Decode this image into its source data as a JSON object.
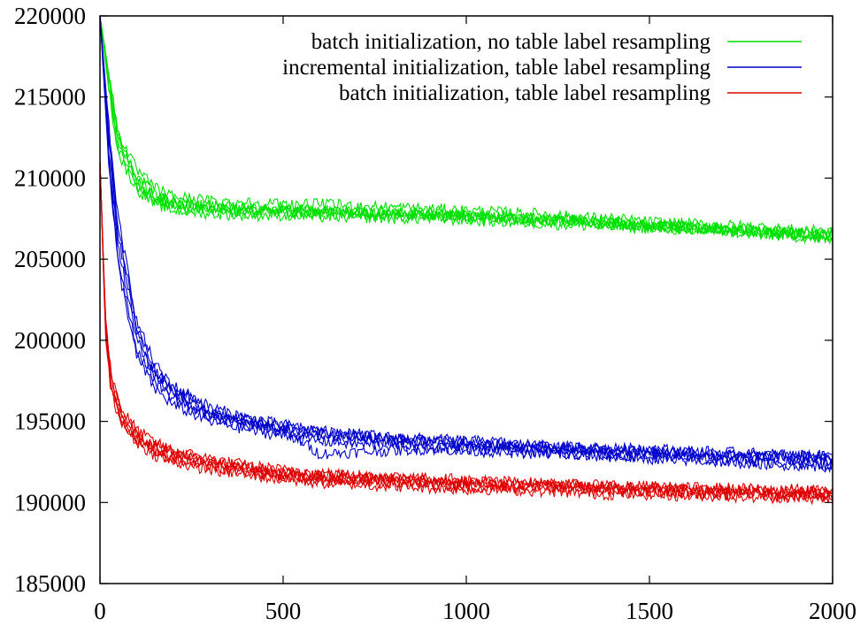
{
  "chart_data": {
    "type": "line",
    "title": "",
    "xlabel": "",
    "ylabel": "",
    "xlim": [
      0,
      2000
    ],
    "ylim": [
      185000,
      220000
    ],
    "xticks": [
      "0",
      "500",
      "1000",
      "1500",
      "2000"
    ],
    "yticks": [
      "185000",
      "190000",
      "195000",
      "200000",
      "205000",
      "210000",
      "215000",
      "220000"
    ],
    "grid": false,
    "legend_position": "top-right",
    "legend": [
      {
        "label": "batch initialization, no table label resampling",
        "color": "#00e000"
      },
      {
        "label": "incremental initialization, table label resampling",
        "color": "#0000cc"
      },
      {
        "label": "batch initialization, table label resampling",
        "color": "#dd0000"
      }
    ],
    "series": [
      {
        "group": 0,
        "color": "#00e000",
        "x": [
          0,
          25,
          50,
          100,
          150,
          200,
          300,
          400,
          500,
          600,
          700,
          800,
          900,
          1000,
          1100,
          1200,
          1300,
          1400,
          1500,
          1600,
          1700,
          1800,
          1900,
          2000
        ],
        "values": [
          220000,
          216000,
          212500,
          210200,
          209000,
          208500,
          208300,
          208100,
          208000,
          208000,
          207900,
          207900,
          207800,
          207700,
          207600,
          207500,
          207400,
          207300,
          207100,
          207000,
          206900,
          206800,
          206700,
          206600
        ]
      },
      {
        "group": 0,
        "color": "#00e000",
        "x": [
          0,
          25,
          50,
          100,
          150,
          200,
          300,
          400,
          500,
          600,
          700,
          800,
          900,
          1000,
          1100,
          1200,
          1300,
          1400,
          1500,
          1600,
          1700,
          1800,
          1900,
          2000
        ],
        "values": [
          220000,
          215500,
          211800,
          209500,
          208600,
          208200,
          208000,
          207900,
          207900,
          207800,
          207800,
          207700,
          207700,
          207600,
          207500,
          207400,
          207300,
          207100,
          207000,
          206900,
          206800,
          206700,
          206600,
          206400
        ]
      },
      {
        "group": 0,
        "color": "#00e000",
        "x": [
          0,
          25,
          50,
          100,
          150,
          200,
          300,
          400,
          500,
          600,
          700,
          800,
          900,
          1000,
          1100,
          1200,
          1300,
          1400,
          1500,
          1600,
          1700,
          1800,
          1900,
          2000
        ],
        "values": [
          220000,
          216300,
          212800,
          210500,
          209400,
          208900,
          208600,
          208500,
          208400,
          208400,
          208300,
          208200,
          208100,
          208000,
          207900,
          207800,
          207600,
          207500,
          207300,
          207200,
          207100,
          207000,
          206800,
          206700
        ]
      },
      {
        "group": 0,
        "color": "#00e000",
        "x": [
          0,
          25,
          50,
          100,
          150,
          200,
          300,
          400,
          500,
          600,
          700,
          800,
          900,
          1000,
          1100,
          1200,
          1300,
          1400,
          1500,
          1600,
          1700,
          1800,
          1900,
          2000
        ],
        "values": [
          220000,
          215800,
          212100,
          209800,
          208800,
          208400,
          208100,
          208000,
          207900,
          207900,
          207800,
          207800,
          207700,
          207600,
          207500,
          207400,
          207300,
          207200,
          207000,
          206900,
          206800,
          206600,
          206500,
          206300
        ]
      },
      {
        "group": 0,
        "color": "#00e000",
        "x": [
          0,
          25,
          50,
          100,
          150,
          200,
          300,
          400,
          500,
          600,
          700,
          800,
          900,
          1000,
          1100,
          1200,
          1300,
          1400,
          1500,
          1600,
          1700,
          1800,
          1900,
          2000
        ],
        "values": [
          220000,
          216100,
          212400,
          210000,
          208900,
          208500,
          208200,
          208100,
          208000,
          208000,
          207900,
          207800,
          207800,
          207700,
          207600,
          207500,
          207400,
          207200,
          207100,
          207000,
          206900,
          206700,
          206600,
          206500
        ]
      },
      {
        "group": 0,
        "color": "#00e000",
        "x": [
          0,
          25,
          50,
          100,
          150,
          200,
          300,
          400,
          500,
          600,
          700,
          800,
          900,
          1000,
          1100,
          1200,
          1300,
          1400,
          1500,
          1600,
          1700,
          1800,
          1900,
          2000
        ],
        "values": [
          220000,
          215300,
          211500,
          209300,
          208400,
          208000,
          207800,
          207700,
          207700,
          207600,
          207600,
          207500,
          207500,
          207400,
          207300,
          207200,
          207100,
          207000,
          206900,
          206800,
          206700,
          206500,
          206400,
          206200
        ]
      },
      {
        "group": 1,
        "color": "#0000cc",
        "x": [
          0,
          25,
          50,
          100,
          150,
          200,
          300,
          400,
          500,
          600,
          700,
          800,
          900,
          1000,
          1100,
          1200,
          1300,
          1400,
          1500,
          1600,
          1700,
          1800,
          1900,
          2000
        ],
        "values": [
          220000,
          212000,
          206500,
          200500,
          198000,
          196800,
          195600,
          195000,
          194600,
          194300,
          194100,
          193900,
          193800,
          193700,
          193600,
          193500,
          193400,
          193300,
          193200,
          193100,
          193000,
          192900,
          192900,
          192800
        ]
      },
      {
        "group": 1,
        "color": "#0000cc",
        "x": [
          0,
          25,
          50,
          100,
          150,
          200,
          300,
          400,
          500,
          600,
          700,
          800,
          900,
          1000,
          1100,
          1200,
          1300,
          1400,
          1500,
          1600,
          1700,
          1800,
          1900,
          2000
        ],
        "values": [
          220000,
          211000,
          205000,
          199500,
          197500,
          196400,
          195300,
          194800,
          194400,
          194100,
          193900,
          193700,
          193600,
          193500,
          193400,
          193300,
          193200,
          193100,
          193000,
          192900,
          192800,
          192700,
          192600,
          192500
        ]
      },
      {
        "group": 1,
        "color": "#0000cc",
        "x": [
          0,
          25,
          50,
          100,
          150,
          200,
          300,
          400,
          500,
          600,
          700,
          800,
          900,
          1000,
          1100,
          1200,
          1300,
          1400,
          1500,
          1600,
          1700,
          1800,
          1900,
          2000
        ],
        "values": [
          220000,
          213000,
          207500,
          201200,
          198500,
          197200,
          195900,
          195200,
          194800,
          194400,
          194200,
          194000,
          193900,
          193800,
          193700,
          193500,
          193400,
          193300,
          193300,
          193200,
          193100,
          193000,
          192900,
          192900
        ]
      },
      {
        "group": 1,
        "color": "#0000cc",
        "x": [
          0,
          25,
          50,
          100,
          150,
          200,
          300,
          400,
          500,
          600,
          700,
          800,
          900,
          1000,
          1100,
          1200,
          1300,
          1400,
          1500,
          1600,
          1700,
          1800,
          1900,
          2000
        ],
        "values": [
          220000,
          210500,
          204500,
          199000,
          197000,
          196000,
          195000,
          194500,
          194100,
          193800,
          193600,
          193500,
          193400,
          193300,
          193200,
          193100,
          193000,
          192900,
          192800,
          192700,
          192600,
          192500,
          192400,
          192300
        ]
      },
      {
        "group": 1,
        "color": "#0000cc",
        "x": [
          0,
          25,
          50,
          100,
          150,
          200,
          300,
          400,
          500,
          600,
          700,
          800,
          900,
          1000,
          1100,
          1200,
          1300,
          1400,
          1500,
          1600,
          1700,
          1800,
          1900,
          2000
        ],
        "values": [
          220000,
          212500,
          207000,
          200800,
          198200,
          197000,
          195700,
          195100,
          194700,
          194300,
          194100,
          193900,
          193800,
          193600,
          193500,
          193400,
          193300,
          193200,
          193100,
          193000,
          192900,
          192800,
          192800,
          192700
        ]
      },
      {
        "group": 1,
        "color": "#0000cc",
        "x": [
          0,
          25,
          50,
          100,
          150,
          200,
          300,
          400,
          500,
          600,
          700,
          800,
          900,
          1000,
          1100,
          1200,
          1300,
          1400,
          1500,
          1600,
          1700,
          1800,
          1900,
          2000
        ],
        "values": [
          220000,
          211500,
          205800,
          200000,
          197800,
          196600,
          195400,
          194900,
          194500,
          193000,
          193100,
          193200,
          193300,
          193200,
          193100,
          193000,
          192900,
          192800,
          192700,
          192600,
          192500,
          192400,
          192300,
          192200
        ]
      },
      {
        "group": 2,
        "color": "#dd0000",
        "x": [
          0,
          15,
          30,
          60,
          100,
          150,
          200,
          300,
          400,
          500,
          600,
          700,
          800,
          900,
          1000,
          1100,
          1200,
          1300,
          1400,
          1500,
          1600,
          1700,
          1800,
          1900,
          2000
        ],
        "values": [
          211000,
          201000,
          197500,
          195300,
          194200,
          193400,
          193000,
          192500,
          192100,
          191800,
          191600,
          191500,
          191400,
          191300,
          191200,
          191100,
          191100,
          191000,
          190900,
          190800,
          190800,
          190700,
          190700,
          190600,
          190600
        ]
      },
      {
        "group": 2,
        "color": "#dd0000",
        "x": [
          0,
          15,
          30,
          60,
          100,
          150,
          200,
          300,
          400,
          500,
          600,
          700,
          800,
          900,
          1000,
          1100,
          1200,
          1300,
          1400,
          1500,
          1600,
          1700,
          1800,
          1900,
          2000
        ],
        "values": [
          211000,
          200500,
          197000,
          195000,
          193900,
          193100,
          192700,
          192200,
          191900,
          191600,
          191400,
          191300,
          191200,
          191100,
          191000,
          190900,
          190900,
          190800,
          190700,
          190600,
          190600,
          190500,
          190500,
          190400,
          190300
        ]
      },
      {
        "group": 2,
        "color": "#dd0000",
        "x": [
          0,
          15,
          30,
          60,
          100,
          150,
          200,
          300,
          400,
          500,
          600,
          700,
          800,
          900,
          1000,
          1100,
          1200,
          1300,
          1400,
          1500,
          1600,
          1700,
          1800,
          1900,
          2000
        ],
        "values": [
          211000,
          201500,
          198000,
          195700,
          194500,
          193700,
          193200,
          192700,
          192300,
          192000,
          191800,
          191700,
          191600,
          191500,
          191400,
          191300,
          191200,
          191100,
          191000,
          191000,
          190900,
          190900,
          190800,
          190800,
          190700
        ]
      },
      {
        "group": 2,
        "color": "#dd0000",
        "x": [
          0,
          15,
          30,
          60,
          100,
          150,
          200,
          300,
          400,
          500,
          600,
          700,
          800,
          900,
          1000,
          1100,
          1200,
          1300,
          1400,
          1500,
          1600,
          1700,
          1800,
          1900,
          2000
        ],
        "values": [
          211000,
          200200,
          196800,
          194800,
          193700,
          192900,
          192500,
          192000,
          191700,
          191400,
          191200,
          191100,
          191000,
          190900,
          190800,
          190800,
          190700,
          190600,
          190500,
          190500,
          190400,
          190400,
          190300,
          190300,
          190200
        ]
      },
      {
        "group": 2,
        "color": "#dd0000",
        "x": [
          0,
          15,
          30,
          60,
          100,
          150,
          200,
          300,
          400,
          500,
          600,
          700,
          800,
          900,
          1000,
          1100,
          1200,
          1300,
          1400,
          1500,
          1600,
          1700,
          1800,
          1900,
          2000
        ],
        "values": [
          211000,
          201200,
          197700,
          195500,
          194300,
          193500,
          193100,
          192600,
          192200,
          191900,
          191700,
          191600,
          191500,
          191400,
          191300,
          191200,
          191100,
          191000,
          191000,
          190900,
          190800,
          190800,
          190700,
          190700,
          190600
        ]
      },
      {
        "group": 2,
        "color": "#dd0000",
        "x": [
          0,
          15,
          30,
          60,
          100,
          150,
          200,
          300,
          400,
          500,
          600,
          700,
          800,
          900,
          1000,
          1100,
          1200,
          1300,
          1400,
          1500,
          1600,
          1700,
          1800,
          1900,
          2000
        ],
        "values": [
          211000,
          200800,
          197200,
          195100,
          194000,
          193200,
          192800,
          192300,
          192000,
          191700,
          191500,
          191400,
          191300,
          191200,
          191100,
          191000,
          191000,
          190900,
          190800,
          190700,
          190700,
          190600,
          190600,
          190500,
          190400
        ]
      }
    ]
  }
}
